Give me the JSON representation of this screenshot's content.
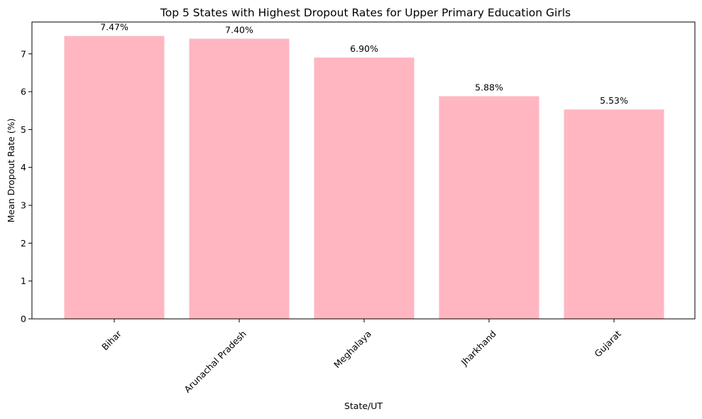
{
  "chart_data": {
    "type": "bar",
    "title": "Top 5 States with Highest Dropout Rates for Upper Primary Education Girls",
    "xlabel": "State/UT",
    "ylabel": "Mean Dropout Rate (%)",
    "categories": [
      "Bihar",
      "Arunachal Pradesh",
      "Meghalaya",
      "Jharkhand",
      "Gujarat"
    ],
    "values": [
      7.47,
      7.4,
      6.9,
      5.88,
      5.53
    ],
    "data_labels": [
      "7.47%",
      "7.40%",
      "6.90%",
      "5.88%",
      "5.53%"
    ],
    "ylim": [
      0,
      7.84
    ],
    "yticks": [
      0,
      1,
      2,
      3,
      4,
      5,
      6,
      7
    ],
    "grid": false,
    "bar_color": "#ffb6c1",
    "x_tick_rotation_deg": 45
  }
}
